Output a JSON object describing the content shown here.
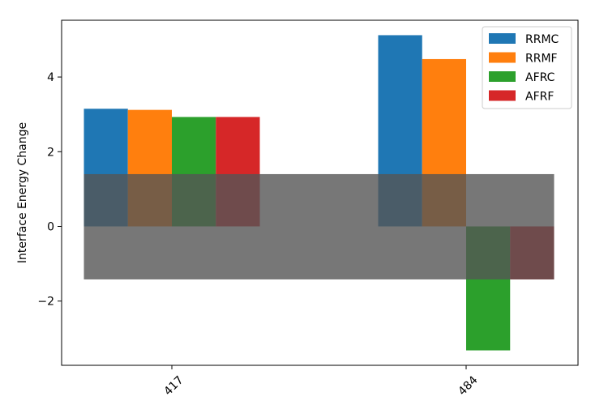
{
  "chart_data": {
    "type": "bar",
    "title": "",
    "xlabel": "",
    "ylabel": "Interface Energy Change",
    "categories": [
      "417",
      "484"
    ],
    "series": [
      {
        "name": "RRMC",
        "color": "#1f77b4",
        "values": [
          3.15,
          5.12
        ]
      },
      {
        "name": "RRMF",
        "color": "#ff7f0e",
        "values": [
          3.12,
          4.48
        ]
      },
      {
        "name": "AFRC",
        "color": "#2ca02c",
        "values": [
          2.93,
          -3.32
        ]
      },
      {
        "name": "AFRF",
        "color": "#d62728",
        "values": [
          2.93,
          -1.42
        ]
      }
    ],
    "band": {
      "ymin": -1.42,
      "ymax": 1.4,
      "color": "#555555",
      "opacity": 0.8
    },
    "ylim": [
      -3.72,
      5.52
    ],
    "yticks": [
      -2,
      0,
      2,
      4
    ],
    "grid": false,
    "legend_position": "top-right",
    "xtick_rotation": 45
  }
}
